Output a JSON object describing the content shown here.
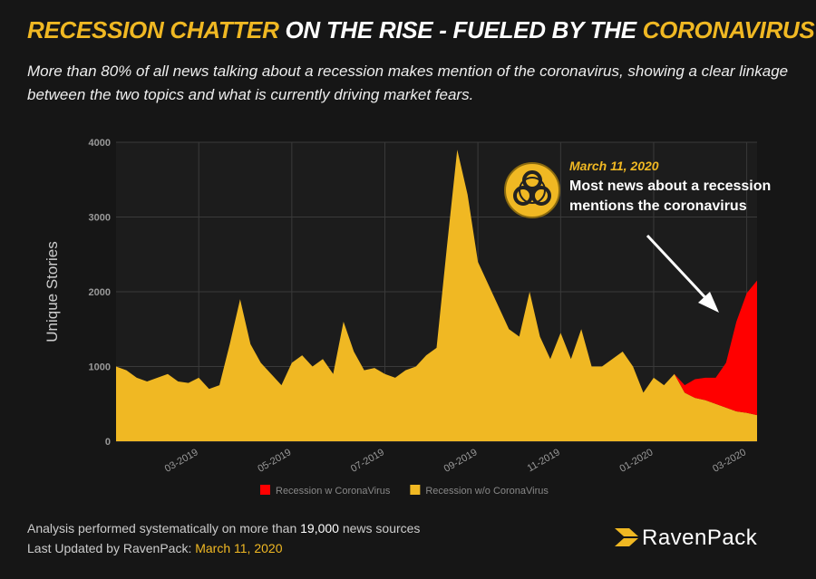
{
  "header": {
    "title_parts": [
      "RECESSION CHATTER",
      "ON THE RISE - FUELED BY THE",
      "CORONAVIRUS"
    ],
    "subtitle": "More than 80% of all news talking about a recession makes mention of the coronavirus, showing a clear linkage between the two topics and what is currently driving market fears."
  },
  "chart_data": {
    "type": "area",
    "stacked": true,
    "y_label": "Unique Stories",
    "categories": [
      null,
      null,
      null,
      null,
      null,
      null,
      null,
      null,
      "03-2019",
      null,
      null,
      null,
      null,
      null,
      null,
      null,
      null,
      "05-2019",
      null,
      null,
      null,
      null,
      null,
      null,
      null,
      null,
      "07-2019",
      null,
      null,
      null,
      null,
      null,
      null,
      null,
      null,
      "09-2019",
      null,
      null,
      null,
      null,
      null,
      null,
      null,
      "11-2019",
      null,
      null,
      null,
      null,
      null,
      null,
      null,
      null,
      "01-2020",
      null,
      null,
      null,
      null,
      null,
      null,
      null,
      null,
      "03-2020",
      null
    ],
    "series": [
      {
        "name": "Recession w CoronaVirus",
        "color": "#ff0000",
        "values": [
          0,
          0,
          0,
          0,
          0,
          0,
          0,
          0,
          0,
          0,
          0,
          0,
          0,
          0,
          0,
          0,
          0,
          0,
          0,
          0,
          0,
          0,
          0,
          0,
          0,
          0,
          0,
          0,
          0,
          0,
          0,
          0,
          0,
          0,
          0,
          0,
          0,
          0,
          0,
          0,
          0,
          0,
          0,
          0,
          0,
          0,
          0,
          0,
          0,
          0,
          0,
          0,
          0,
          0,
          0,
          100,
          250,
          300,
          350,
          600,
          1200,
          1600,
          1800
        ]
      },
      {
        "name": "Recession w/o CoronaVirus",
        "color": "#f0b823",
        "values": [
          1000,
          950,
          850,
          800,
          850,
          900,
          800,
          780,
          850,
          700,
          750,
          1300,
          1900,
          1300,
          1050,
          900,
          750,
          1050,
          1150,
          1000,
          1100,
          900,
          1600,
          1200,
          950,
          980,
          900,
          850,
          950,
          1000,
          1150,
          1250,
          2600,
          3900,
          3300,
          2400,
          2100,
          1800,
          1500,
          1400,
          2000,
          1400,
          1100,
          1450,
          1100,
          1500,
          1000,
          1000,
          1100,
          1200,
          1000,
          650,
          850,
          750,
          900,
          650,
          580,
          550,
          500,
          450,
          400,
          380,
          350
        ]
      }
    ],
    "ylim": [
      0,
      4000
    ],
    "yticks": [
      0,
      1000,
      2000,
      3000,
      4000
    ],
    "grid": true,
    "annotation": {
      "date": "March 11, 2020",
      "text": "Most news about a recession mentions the coronavirus"
    }
  },
  "footer": {
    "line1_parts": [
      "Analysis performed systematically on more than",
      "19,000",
      "news sources"
    ],
    "line2_parts": [
      "Last Updated by RavenPack:",
      "March 11, 2020"
    ]
  },
  "logo": "RavenPack"
}
